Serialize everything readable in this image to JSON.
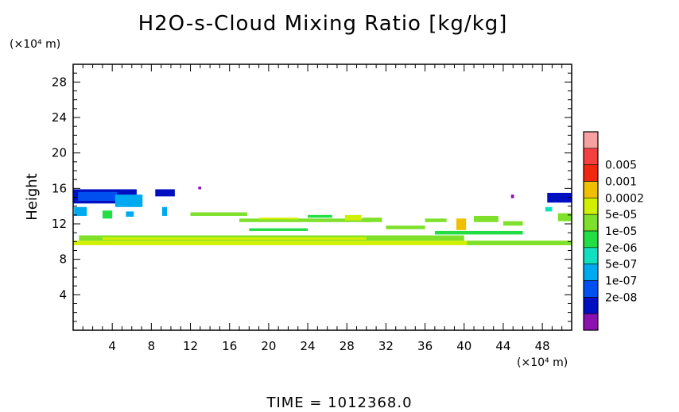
{
  "chart_data": {
    "type": "heatmap",
    "title": "H2O-s-Cloud Mixing Ratio [kg/kg]",
    "ylabel": "Height",
    "y_unit_label": "(×10⁴ m)",
    "x_unit_label": "(×10⁴ m)",
    "xlim": [
      0,
      51
    ],
    "ylim": [
      0,
      30
    ],
    "x_ticks": [
      4,
      8,
      12,
      16,
      20,
      24,
      28,
      32,
      36,
      40,
      44,
      48
    ],
    "y_ticks": [
      4,
      8,
      12,
      16,
      20,
      24,
      28
    ],
    "footer": "TIME = 1012368.0",
    "colorbar": {
      "levels": [
        {
          "label": "",
          "color": "#f7a1a1"
        },
        {
          "label": "0.005",
          "color": "#f54040"
        },
        {
          "label": "0.001",
          "color": "#f02810"
        },
        {
          "label": "0.0002",
          "color": "#f0c000"
        },
        {
          "label": "5e-05",
          "color": "#d0f000"
        },
        {
          "label": "1e-05",
          "color": "#7ee02a"
        },
        {
          "label": "2e-06",
          "color": "#22dd44"
        },
        {
          "label": "5e-07",
          "color": "#10e0c0"
        },
        {
          "label": "1e-07",
          "color": "#00aaf0"
        },
        {
          "label": "2e-08",
          "color": "#0050f0"
        },
        {
          "label": "",
          "color": "#0010c0"
        },
        {
          "label": "",
          "color": "#8a10b0"
        }
      ]
    },
    "regions": [
      {
        "x0": 0.0,
        "x1": 51.0,
        "y0": 9.6,
        "y1": 10.1,
        "level": 4
      },
      {
        "x0": 0.6,
        "x1": 40.0,
        "y0": 10.1,
        "y1": 10.7,
        "level": 5
      },
      {
        "x0": 3.0,
        "x1": 30.0,
        "y0": 10.2,
        "y1": 10.5,
        "level": 4
      },
      {
        "x0": 0.0,
        "x1": 6.5,
        "y0": 14.3,
        "y1": 15.9,
        "level": 10
      },
      {
        "x0": 0.5,
        "x1": 4.5,
        "y0": 14.6,
        "y1": 15.6,
        "level": 9
      },
      {
        "x0": 4.3,
        "x1": 7.1,
        "y0": 13.9,
        "y1": 15.3,
        "level": 8
      },
      {
        "x0": 0.1,
        "x1": 1.4,
        "y0": 12.9,
        "y1": 13.9,
        "level": 8
      },
      {
        "x0": 3.0,
        "x1": 4.0,
        "y0": 12.6,
        "y1": 13.5,
        "level": 6
      },
      {
        "x0": 5.4,
        "x1": 6.2,
        "y0": 12.8,
        "y1": 13.4,
        "level": 8
      },
      {
        "x0": 8.4,
        "x1": 10.4,
        "y0": 15.1,
        "y1": 15.9,
        "level": 10
      },
      {
        "x0": 9.1,
        "x1": 9.6,
        "y0": 12.9,
        "y1": 13.9,
        "level": 8
      },
      {
        "x0": 12.8,
        "x1": 13.1,
        "y0": 15.9,
        "y1": 16.2,
        "level": 11
      },
      {
        "x0": 12.0,
        "x1": 17.8,
        "y0": 12.9,
        "y1": 13.3,
        "level": 5
      },
      {
        "x0": 17.0,
        "x1": 30.5,
        "y0": 12.2,
        "y1": 12.6,
        "level": 5
      },
      {
        "x0": 19.0,
        "x1": 23.0,
        "y0": 12.5,
        "y1": 12.7,
        "level": 4
      },
      {
        "x0": 24.0,
        "x1": 26.5,
        "y0": 12.7,
        "y1": 13.0,
        "level": 6
      },
      {
        "x0": 27.8,
        "x1": 29.5,
        "y0": 12.4,
        "y1": 13.0,
        "level": 4
      },
      {
        "x0": 29.6,
        "x1": 31.6,
        "y0": 12.2,
        "y1": 12.7,
        "level": 5
      },
      {
        "x0": 18.0,
        "x1": 24.0,
        "y0": 11.2,
        "y1": 11.5,
        "level": 6
      },
      {
        "x0": 32.0,
        "x1": 36.0,
        "y0": 11.4,
        "y1": 11.8,
        "level": 5
      },
      {
        "x0": 36.0,
        "x1": 38.2,
        "y0": 12.2,
        "y1": 12.6,
        "level": 5
      },
      {
        "x0": 39.2,
        "x1": 40.2,
        "y0": 11.3,
        "y1": 12.6,
        "level": 3
      },
      {
        "x0": 41.0,
        "x1": 43.5,
        "y0": 12.2,
        "y1": 12.9,
        "level": 5
      },
      {
        "x0": 44.0,
        "x1": 46.0,
        "y0": 11.8,
        "y1": 12.3,
        "level": 5
      },
      {
        "x0": 37.0,
        "x1": 46.0,
        "y0": 10.8,
        "y1": 11.2,
        "level": 6
      },
      {
        "x0": 44.8,
        "x1": 45.1,
        "y0": 14.9,
        "y1": 15.3,
        "level": 11
      },
      {
        "x0": 48.5,
        "x1": 51.0,
        "y0": 14.4,
        "y1": 15.5,
        "level": 10
      },
      {
        "x0": 49.6,
        "x1": 51.0,
        "y0": 12.3,
        "y1": 13.2,
        "level": 5
      },
      {
        "x0": 48.3,
        "x1": 49.0,
        "y0": 13.4,
        "y1": 13.9,
        "level": 7
      },
      {
        "x0": 40.3,
        "x1": 51.0,
        "y0": 9.6,
        "y1": 10.1,
        "level": 5
      }
    ]
  }
}
